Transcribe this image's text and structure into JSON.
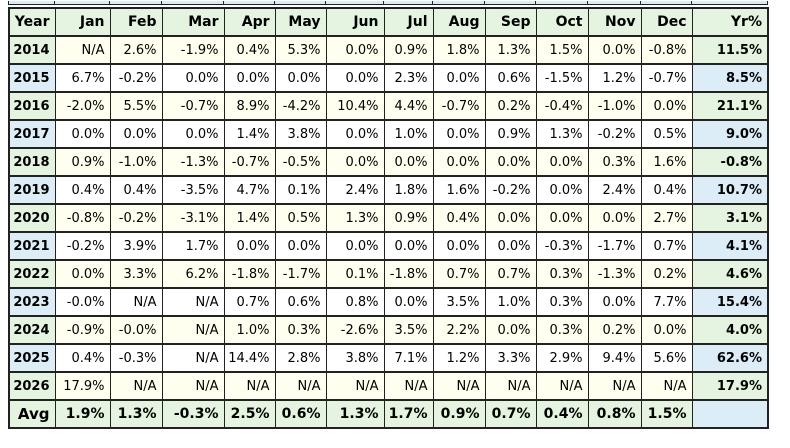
{
  "chart_data": {
    "type": "table",
    "columns": [
      "Year",
      "Jan",
      "Feb",
      "Mar",
      "Apr",
      "May",
      "Jun",
      "Jul",
      "Aug",
      "Sep",
      "Oct",
      "Nov",
      "Dec",
      "Yr%"
    ],
    "rows": [
      {
        "year": "2014",
        "values": [
          "N/A",
          "2.6%",
          "-1.9%",
          "0.4%",
          "5.3%",
          "0.0%",
          "0.9%",
          "1.8%",
          "1.3%",
          "1.5%",
          "0.0%",
          "-0.8%"
        ],
        "yr": "11.5%"
      },
      {
        "year": "2015",
        "values": [
          "6.7%",
          "-0.2%",
          "0.0%",
          "0.0%",
          "0.0%",
          "0.0%",
          "2.3%",
          "0.0%",
          "0.6%",
          "-1.5%",
          "1.2%",
          "-0.7%"
        ],
        "yr": "8.5%"
      },
      {
        "year": "2016",
        "values": [
          "-2.0%",
          "5.5%",
          "-0.7%",
          "8.9%",
          "-4.2%",
          "10.4%",
          "4.4%",
          "-0.7%",
          "0.2%",
          "-0.4%",
          "-1.0%",
          "0.0%"
        ],
        "yr": "21.1%"
      },
      {
        "year": "2017",
        "values": [
          "0.0%",
          "0.0%",
          "0.0%",
          "1.4%",
          "3.8%",
          "0.0%",
          "1.0%",
          "0.0%",
          "0.9%",
          "1.3%",
          "-0.2%",
          "0.5%"
        ],
        "yr": "9.0%"
      },
      {
        "year": "2018",
        "values": [
          "0.9%",
          "-1.0%",
          "-1.3%",
          "-0.7%",
          "-0.5%",
          "0.0%",
          "0.0%",
          "0.0%",
          "0.0%",
          "0.0%",
          "0.3%",
          "1.6%"
        ],
        "yr": "-0.8%"
      },
      {
        "year": "2019",
        "values": [
          "0.4%",
          "0.4%",
          "-3.5%",
          "4.7%",
          "0.1%",
          "2.4%",
          "1.8%",
          "1.6%",
          "-0.2%",
          "0.0%",
          "2.4%",
          "0.4%"
        ],
        "yr": "10.7%"
      },
      {
        "year": "2020",
        "values": [
          "-0.8%",
          "-0.2%",
          "-3.1%",
          "1.4%",
          "0.5%",
          "1.3%",
          "0.9%",
          "0.4%",
          "0.0%",
          "0.0%",
          "0.0%",
          "2.7%"
        ],
        "yr": "3.1%"
      },
      {
        "year": "2021",
        "values": [
          "-0.2%",
          "3.9%",
          "1.7%",
          "0.0%",
          "0.0%",
          "0.0%",
          "0.0%",
          "0.0%",
          "0.0%",
          "-0.3%",
          "-1.7%",
          "0.7%"
        ],
        "yr": "4.1%"
      },
      {
        "year": "2022",
        "values": [
          "0.0%",
          "3.3%",
          "6.2%",
          "-1.8%",
          "-1.7%",
          "0.1%",
          "-1.8%",
          "0.7%",
          "0.7%",
          "0.3%",
          "-1.3%",
          "0.2%"
        ],
        "yr": "4.6%"
      },
      {
        "year": "2023",
        "values": [
          "-0.0%",
          "N/A",
          "N/A",
          "0.7%",
          "0.6%",
          "0.8%",
          "0.0%",
          "3.5%",
          "1.0%",
          "0.3%",
          "0.0%",
          "7.7%"
        ],
        "yr": "15.4%"
      },
      {
        "year": "2024",
        "values": [
          "-0.9%",
          "-0.0%",
          "N/A",
          "1.0%",
          "0.3%",
          "-2.6%",
          "3.5%",
          "2.2%",
          "0.0%",
          "0.3%",
          "0.2%",
          "0.0%"
        ],
        "yr": "4.0%"
      },
      {
        "year": "2025",
        "values": [
          "0.4%",
          "-0.3%",
          "N/A",
          "14.4%",
          "2.8%",
          "3.8%",
          "7.1%",
          "1.2%",
          "3.3%",
          "2.9%",
          "9.4%",
          "5.6%"
        ],
        "yr": "62.6%"
      },
      {
        "year": "2026",
        "values": [
          "17.9%",
          "N/A",
          "N/A",
          "N/A",
          "N/A",
          "N/A",
          "N/A",
          "N/A",
          "N/A",
          "N/A",
          "N/A",
          "N/A"
        ],
        "yr": "17.9%"
      }
    ],
    "avg_row": {
      "label": "Avg",
      "values": [
        "1.9%",
        "1.3%",
        "-0.3%",
        "2.5%",
        "0.6%",
        "1.3%",
        "1.7%",
        "0.9%",
        "0.7%",
        "0.4%",
        "0.8%",
        "1.5%"
      ],
      "yr": ""
    }
  },
  "colors": {
    "header_and_green_band": "#e4f4e0",
    "blue_band": "#dcedf8",
    "odd_row_cells": "#fffff0",
    "even_row_cells": "#ffffff",
    "negative_value_text": "#9b2a26",
    "positive_value_text": "#000000",
    "grid_border": "#222222"
  }
}
